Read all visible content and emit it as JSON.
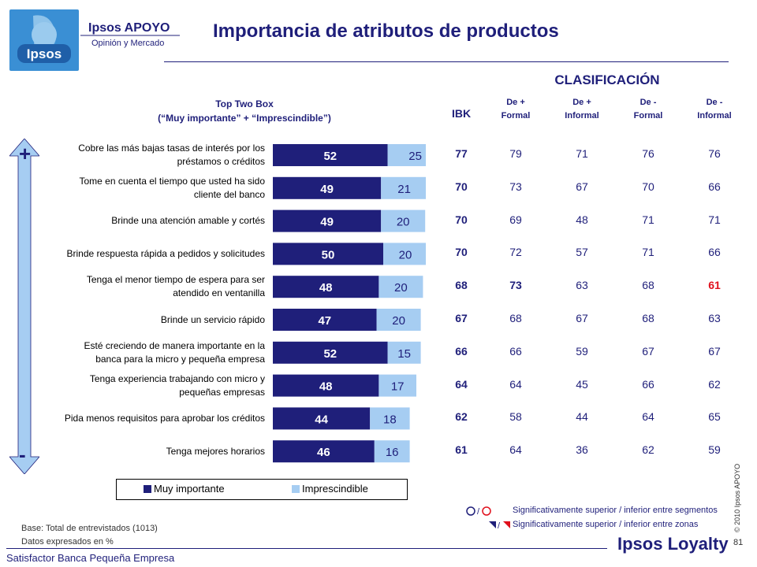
{
  "header": {
    "title": "Importancia de atributos de productos",
    "logo_brand": "Ipsos APOYO",
    "logo_sub": "Opinión y Mercado",
    "logo_word": "Ipsos"
  },
  "table": {
    "clasificacion_label": "CLASIFICACIÓN",
    "top_two_box_line1": "Top Two Box",
    "top_two_box_line2": "(“Muy importante” + “Imprescindible”)",
    "ibk_header": "IBK",
    "segment_headers": [
      {
        "line1": "De +",
        "line2": "Formal"
      },
      {
        "line1": "De +",
        "line2": "Informal"
      },
      {
        "line1": "De -",
        "line2": "Formal"
      },
      {
        "line1": "De  -",
        "line2": "Informal"
      }
    ],
    "rows": [
      {
        "label1": "Cobre las más bajas tasas de interés por los",
        "label2": "préstamos o créditos",
        "ibk": "77",
        "seg": [
          "79",
          "71",
          "76",
          "76"
        ]
      },
      {
        "label1": "Tome en cuenta el tiempo que usted ha sido",
        "label2": "cliente del banco",
        "ibk": "70",
        "seg": [
          "73",
          "67",
          "70",
          "66"
        ]
      },
      {
        "label1": "Brinde una atención amable y cortés",
        "label2": "",
        "ibk": "70",
        "seg": [
          "69",
          "48",
          "71",
          "71"
        ]
      },
      {
        "label1": "Brinde respuesta rápida a pedidos y solicitudes",
        "label2": "",
        "ibk": "70",
        "seg": [
          "72",
          "57",
          "71",
          "66"
        ]
      },
      {
        "label1": "Tenga el menor tiempo de espera para ser",
        "label2": "atendido en ventanilla",
        "ibk": "68",
        "seg": [
          "73",
          "63",
          "68",
          "61"
        ]
      },
      {
        "label1": "Brinde un servicio rápido",
        "label2": "",
        "ibk": "67",
        "seg": [
          "68",
          "67",
          "68",
          "63"
        ]
      },
      {
        "label1": "Esté creciendo de manera importante en la",
        "label2": "banca para la micro y pequeña empresa",
        "ibk": "66",
        "seg": [
          "66",
          "59",
          "67",
          "67"
        ]
      },
      {
        "label1": "Tenga experiencia trabajando con micro y",
        "label2": "pequeñas empresas",
        "ibk": "64",
        "seg": [
          "64",
          "45",
          "66",
          "62"
        ]
      },
      {
        "label1": "Pida menos requisitos para aprobar los créditos",
        "label2": "",
        "ibk": "62",
        "seg": [
          "58",
          "44",
          "64",
          "65"
        ]
      },
      {
        "label1": "Tenga mejores horarios",
        "label2": "",
        "ibk": "61",
        "seg": [
          "64",
          "36",
          "62",
          "59"
        ]
      }
    ],
    "highlights": {
      "significant_up": [
        {
          "row": 4,
          "col": 0
        }
      ],
      "significant_down": [
        {
          "row": 4,
          "col": 3
        }
      ]
    }
  },
  "chart_data": {
    "type": "bar",
    "orientation": "horizontal",
    "stacked": true,
    "categories": [
      "Cobre las más bajas tasas de interés por los préstamos o créditos",
      "Tome en cuenta el tiempo que usted ha sido cliente del banco",
      "Brinde una atención amable y cortés",
      "Brinde respuesta rápida a pedidos y solicitudes",
      "Tenga el menor tiempo de espera para ser atendido en ventanilla",
      "Brinde un servicio rápido",
      "Esté creciendo de manera importante en la banca para la micro y pequeña empresa",
      "Tenga experiencia trabajando con micro y pequeñas empresas",
      "Pida menos requisitos para aprobar los créditos",
      "Tenga mejores horarios"
    ],
    "series": [
      {
        "name": "Muy importante",
        "color": "#1f1f7a",
        "label_color": "#ffffff",
        "values": [
          52,
          49,
          49,
          50,
          48,
          47,
          52,
          48,
          44,
          46
        ]
      },
      {
        "name": "Imprescindible",
        "color": "#a6cdf2",
        "label_color": "#1f1f7a",
        "values": [
          25,
          21,
          20,
          20,
          20,
          20,
          15,
          17,
          18,
          16
        ]
      }
    ],
    "legend_position": "bottom",
    "grid": false
  },
  "legend": {
    "items": [
      "Muy importante",
      "Imprescindible"
    ]
  },
  "arrow": {
    "top": "+",
    "bottom": "-"
  },
  "notes": {
    "segments": "Significativamente superior / inferior entre segmentos",
    "zones": "Significativamente superior / inferior entre zonas",
    "base": "Base: Total de entrevistados (1013)",
    "datos": "Datos expresados en %"
  },
  "footer": {
    "left": "Satisfactor Banca Pequeña Empresa",
    "brand": "Ipsos Loyalty",
    "page": "81",
    "copyright": "© 2010 Ipsos APOYO"
  },
  "colors": {
    "navy": "#1f1f7a",
    "light_blue": "#a6cdf2",
    "red": "#e0101c"
  }
}
